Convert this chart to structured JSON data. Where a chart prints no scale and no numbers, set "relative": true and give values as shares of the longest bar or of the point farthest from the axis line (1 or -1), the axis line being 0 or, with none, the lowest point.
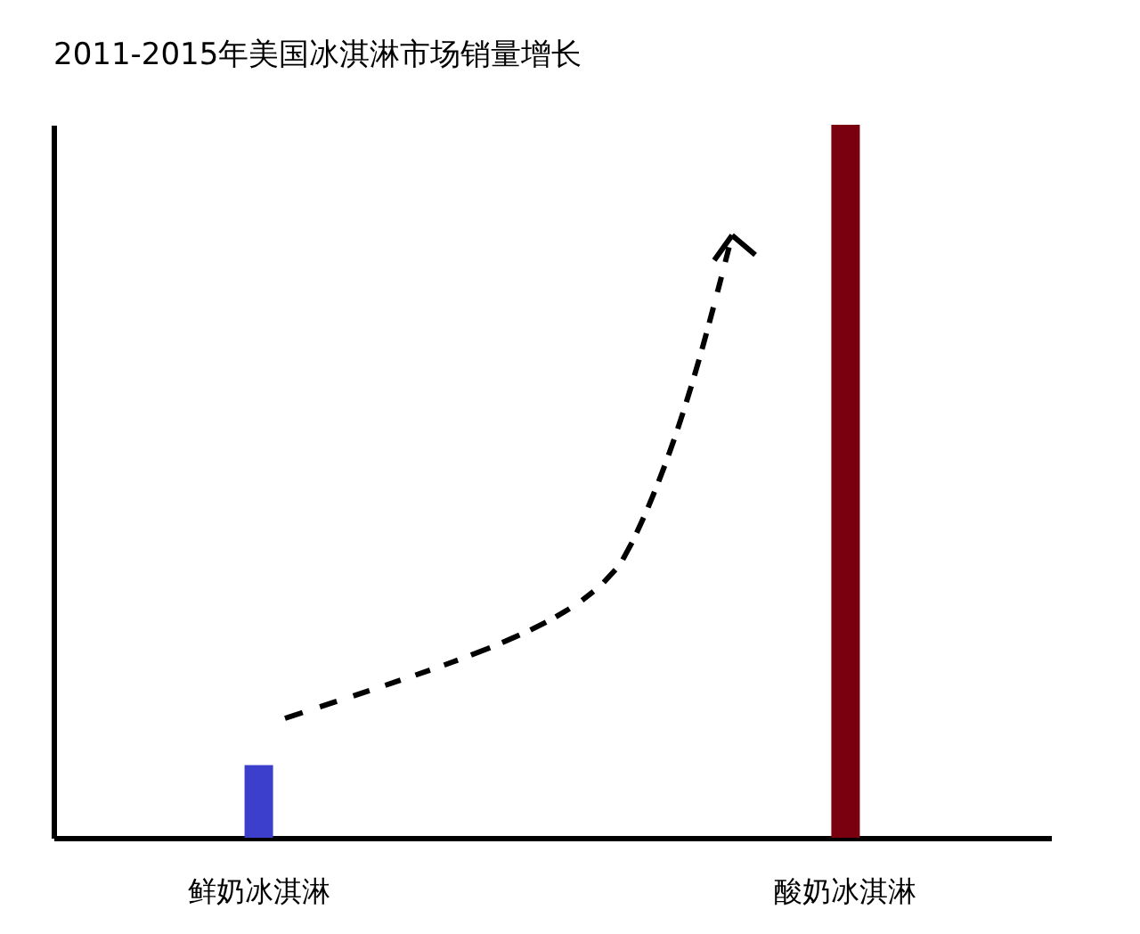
{
  "chart_data": {
    "type": "bar",
    "title": "2011-2015年美国冰淇淋市场销量增长",
    "categories": [
      "鲜奶冰淇淋",
      "酸奶冰淇淋"
    ],
    "values": [
      0.102,
      1
    ],
    "colors": [
      "#3b3fcc",
      "#7a0010"
    ],
    "relative": true,
    "legend": false,
    "grid": false
  }
}
